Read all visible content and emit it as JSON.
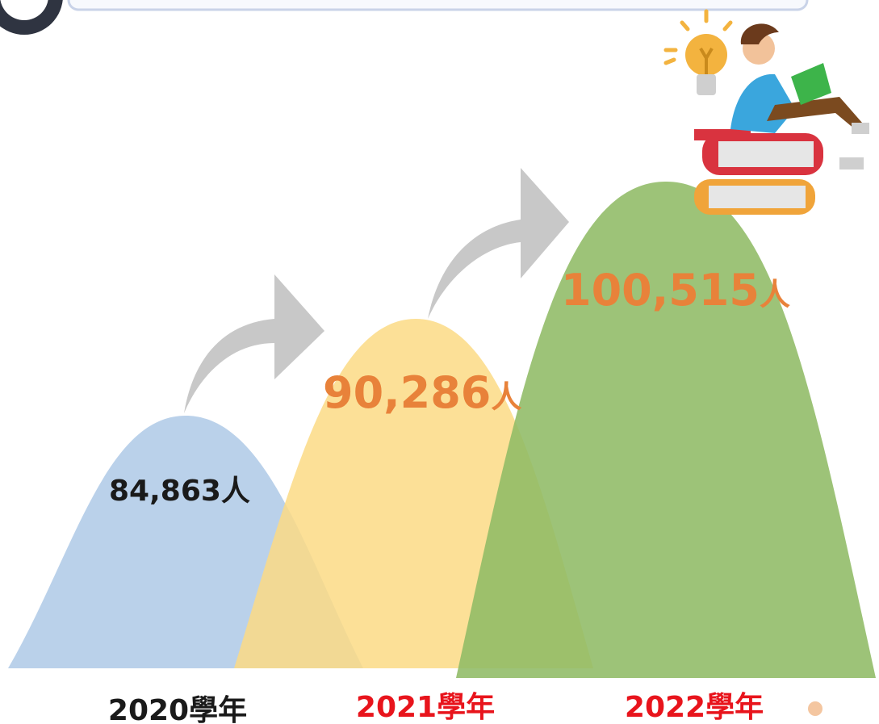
{
  "items": [
    {
      "value": "84,863",
      "unit": "人",
      "year": "2020學年"
    },
    {
      "value": "90,286",
      "unit": "人",
      "year": "2021學年"
    },
    {
      "value": "100,515",
      "unit": "人",
      "year": "2022學年"
    }
  ]
}
